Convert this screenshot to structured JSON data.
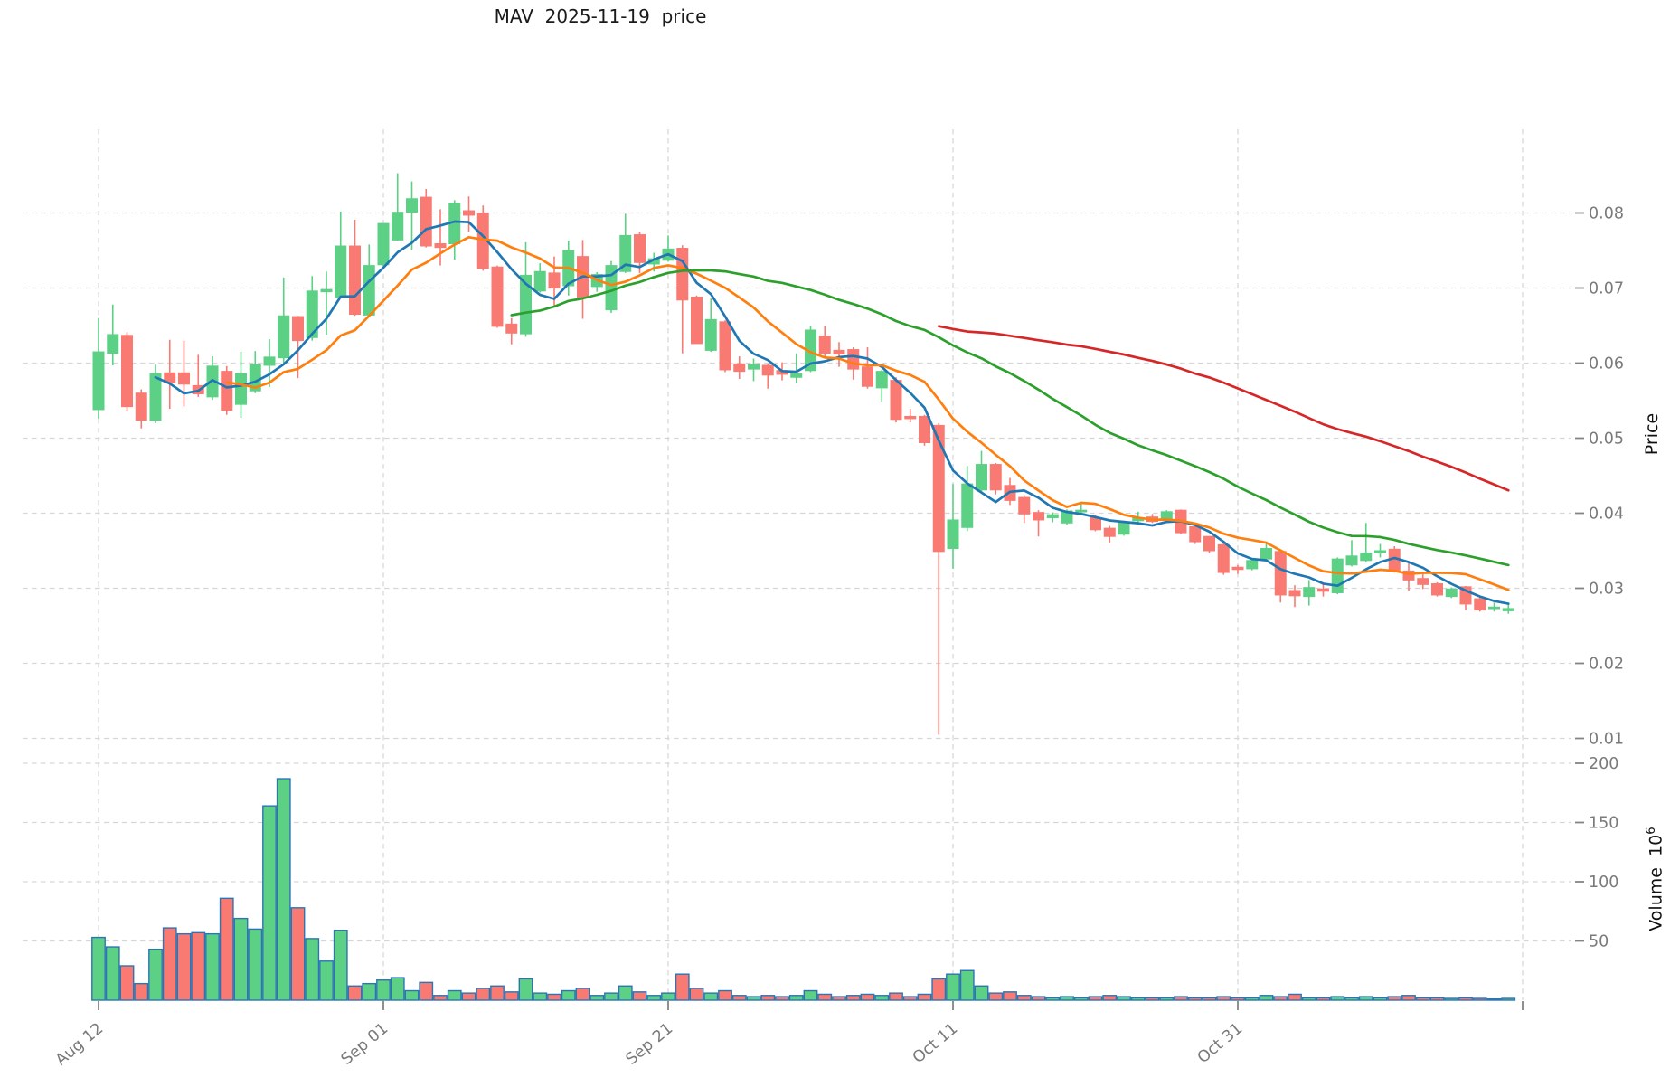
{
  "header": {
    "title": "MAV  2025-11-19  price"
  },
  "colors": {
    "up": "#5cd185",
    "down": "#f87a73",
    "volume_edge": "#2c74b4",
    "ma": [
      "#1f77b4",
      "#ff7f0e",
      "#2ca02c",
      "#d62728"
    ],
    "grid": "#d6d6d6",
    "tick_text": "#7a7a7a",
    "title_text": "#1a1a1a"
  },
  "axes": {
    "price": {
      "label": "Price"
    },
    "volume": {
      "label": "Volume",
      "unit_base": "10",
      "unit_exponent": "6"
    }
  },
  "chart_data": {
    "type": "candlestick",
    "title": "MAV  2025-11-19  price",
    "legend": "none",
    "grid": "dashed both axes",
    "panels": [
      "price with 4 moving averages",
      "volume"
    ],
    "x_axis": {
      "ticks": [
        {
          "label": "Aug 12",
          "candle_index": 0
        },
        {
          "label": "Sep 01",
          "candle_index": 20
        },
        {
          "label": "Sep 21",
          "candle_index": 40
        },
        {
          "label": "Oct 11",
          "candle_index": 60
        },
        {
          "label": "Oct 31",
          "candle_index": 80
        },
        {
          "label": "",
          "candle_index": 100
        }
      ],
      "label_rotation_deg": -40
    },
    "price_axis": {
      "label": "Price",
      "ticks": [
        0.01,
        0.02,
        0.03,
        0.04,
        0.05,
        0.06,
        0.07,
        0.08
      ],
      "ylim": [
        0.0075,
        0.0912
      ]
    },
    "volume_axis": {
      "label": "Volume 10^6",
      "ticks": [
        50,
        100,
        150,
        200
      ],
      "ylim": [
        0,
        210
      ]
    },
    "moving_averages": {
      "windows": [
        5,
        10,
        30,
        60
      ]
    },
    "candles_ohlc": [
      [
        0.0538,
        0.066,
        0.0526,
        0.0615
      ],
      [
        0.0613,
        0.0678,
        0.0597,
        0.0638
      ],
      [
        0.0637,
        0.0641,
        0.0536,
        0.0542
      ],
      [
        0.056,
        0.0565,
        0.0513,
        0.0524
      ],
      [
        0.0524,
        0.0598,
        0.052,
        0.0586
      ],
      [
        0.0587,
        0.0631,
        0.0539,
        0.0574
      ],
      [
        0.0587,
        0.063,
        0.0542,
        0.0572
      ],
      [
        0.057,
        0.0611,
        0.0555,
        0.0559
      ],
      [
        0.0555,
        0.0609,
        0.0551,
        0.0596
      ],
      [
        0.0589,
        0.0596,
        0.0531,
        0.0537
      ],
      [
        0.0545,
        0.0615,
        0.0527,
        0.0586
      ],
      [
        0.0563,
        0.0616,
        0.056,
        0.0598
      ],
      [
        0.0597,
        0.0632,
        0.0568,
        0.0608
      ],
      [
        0.0607,
        0.0714,
        0.06,
        0.0663
      ],
      [
        0.0662,
        0.0663,
        0.058,
        0.063
      ],
      [
        0.0634,
        0.0716,
        0.063,
        0.0696
      ],
      [
        0.0695,
        0.0722,
        0.0638,
        0.0698
      ],
      [
        0.0688,
        0.0802,
        0.0688,
        0.0756
      ],
      [
        0.0756,
        0.0791,
        0.0663,
        0.0665
      ],
      [
        0.0664,
        0.0758,
        0.0664,
        0.073
      ],
      [
        0.0731,
        0.0786,
        0.0729,
        0.0786
      ],
      [
        0.0764,
        0.0853,
        0.0763,
        0.0801
      ],
      [
        0.0801,
        0.0842,
        0.0751,
        0.0819
      ],
      [
        0.0821,
        0.0832,
        0.0754,
        0.0756
      ],
      [
        0.0759,
        0.0805,
        0.073,
        0.0754
      ],
      [
        0.0759,
        0.0817,
        0.0738,
        0.0813
      ],
      [
        0.0803,
        0.0822,
        0.0775,
        0.0797
      ],
      [
        0.08,
        0.081,
        0.0723,
        0.0726
      ],
      [
        0.0728,
        0.073,
        0.0647,
        0.0649
      ],
      [
        0.0652,
        0.066,
        0.0625,
        0.064
      ],
      [
        0.0639,
        0.0761,
        0.0635,
        0.0717
      ],
      [
        0.0696,
        0.0733,
        0.0694,
        0.0722
      ],
      [
        0.072,
        0.0742,
        0.0675,
        0.07
      ],
      [
        0.0703,
        0.0763,
        0.069,
        0.075
      ],
      [
        0.0742,
        0.0764,
        0.0659,
        0.0688
      ],
      [
        0.0702,
        0.0721,
        0.0695,
        0.0718
      ],
      [
        0.0671,
        0.0736,
        0.0667,
        0.073
      ],
      [
        0.0722,
        0.0799,
        0.072,
        0.077
      ],
      [
        0.0771,
        0.0775,
        0.072,
        0.0734
      ],
      [
        0.0732,
        0.0747,
        0.0722,
        0.0739
      ],
      [
        0.0737,
        0.077,
        0.0735,
        0.0752
      ],
      [
        0.0753,
        0.0757,
        0.0613,
        0.0684
      ],
      [
        0.0688,
        0.069,
        0.0626,
        0.0626
      ],
      [
        0.0617,
        0.0686,
        0.0615,
        0.0658
      ],
      [
        0.0655,
        0.0657,
        0.0588,
        0.0591
      ],
      [
        0.0599,
        0.0609,
        0.0579,
        0.0589
      ],
      [
        0.0592,
        0.0606,
        0.0576,
        0.0598
      ],
      [
        0.0597,
        0.0599,
        0.0566,
        0.0584
      ],
      [
        0.059,
        0.0601,
        0.0577,
        0.0585
      ],
      [
        0.0581,
        0.0613,
        0.0573,
        0.0586
      ],
      [
        0.059,
        0.065,
        0.0588,
        0.0644
      ],
      [
        0.0636,
        0.065,
        0.0608,
        0.0613
      ],
      [
        0.0617,
        0.0628,
        0.0595,
        0.0612
      ],
      [
        0.0618,
        0.0621,
        0.0578,
        0.0592
      ],
      [
        0.0595,
        0.0621,
        0.0566,
        0.0569
      ],
      [
        0.0567,
        0.0591,
        0.0549,
        0.0589
      ],
      [
        0.0577,
        0.0581,
        0.0521,
        0.0525
      ],
      [
        0.0529,
        0.0539,
        0.0521,
        0.0526
      ],
      [
        0.0529,
        0.0531,
        0.049,
        0.0494
      ],
      [
        0.0517,
        0.052,
        0.0105,
        0.0349
      ],
      [
        0.0353,
        0.0439,
        0.0326,
        0.0391
      ],
      [
        0.0381,
        0.0463,
        0.0376,
        0.0439
      ],
      [
        0.0431,
        0.0483,
        0.0429,
        0.0465
      ],
      [
        0.0465,
        0.0467,
        0.0425,
        0.0431
      ],
      [
        0.0437,
        0.0447,
        0.0411,
        0.0417
      ],
      [
        0.0421,
        0.0424,
        0.0387,
        0.0399
      ],
      [
        0.0401,
        0.0404,
        0.0369,
        0.0391
      ],
      [
        0.0394,
        0.0401,
        0.0388,
        0.0398
      ],
      [
        0.0387,
        0.0405,
        0.0385,
        0.0403
      ],
      [
        0.0403,
        0.0415,
        0.0399,
        0.0404
      ],
      [
        0.0394,
        0.0398,
        0.0376,
        0.0378
      ],
      [
        0.038,
        0.0383,
        0.0361,
        0.0369
      ],
      [
        0.0372,
        0.039,
        0.037,
        0.0388
      ],
      [
        0.039,
        0.0402,
        0.0387,
        0.0394
      ],
      [
        0.0395,
        0.0399,
        0.0387,
        0.0389
      ],
      [
        0.0391,
        0.0404,
        0.0389,
        0.0402
      ],
      [
        0.0404,
        0.0405,
        0.0372,
        0.0374
      ],
      [
        0.0382,
        0.0383,
        0.0359,
        0.0362
      ],
      [
        0.0369,
        0.0369,
        0.0347,
        0.035
      ],
      [
        0.0358,
        0.036,
        0.0318,
        0.0321
      ],
      [
        0.0328,
        0.0331,
        0.0319,
        0.0325
      ],
      [
        0.0326,
        0.0339,
        0.0324,
        0.0337
      ],
      [
        0.0339,
        0.0362,
        0.0337,
        0.0353
      ],
      [
        0.0349,
        0.0351,
        0.0281,
        0.0291
      ],
      [
        0.0297,
        0.0304,
        0.0275,
        0.029
      ],
      [
        0.0289,
        0.0311,
        0.0277,
        0.0301
      ],
      [
        0.0299,
        0.0305,
        0.0289,
        0.0296
      ],
      [
        0.0294,
        0.0341,
        0.0292,
        0.0339
      ],
      [
        0.0331,
        0.0364,
        0.0329,
        0.0343
      ],
      [
        0.0337,
        0.0387,
        0.0335,
        0.0347
      ],
      [
        0.0347,
        0.0359,
        0.0341,
        0.035
      ],
      [
        0.0352,
        0.0356,
        0.0321,
        0.0323
      ],
      [
        0.0323,
        0.0335,
        0.0297,
        0.0311
      ],
      [
        0.0313,
        0.0322,
        0.0299,
        0.0305
      ],
      [
        0.0306,
        0.0308,
        0.0289,
        0.0291
      ],
      [
        0.0289,
        0.0301,
        0.0287,
        0.0299
      ],
      [
        0.0302,
        0.0303,
        0.0271,
        0.0279
      ],
      [
        0.0286,
        0.0288,
        0.0269,
        0.0271
      ],
      [
        0.0273,
        0.0281,
        0.0269,
        0.0275
      ],
      [
        0.027,
        0.028,
        0.0266,
        0.0273
      ]
    ],
    "volume_millions": [
      53,
      45,
      29,
      14,
      43,
      61,
      56,
      57,
      56,
      86,
      69,
      60,
      164,
      187,
      78,
      52,
      33,
      59,
      12,
      14,
      17,
      19,
      8,
      15,
      4,
      8,
      6,
      10,
      12,
      7,
      18,
      6,
      5,
      8,
      10,
      4,
      6,
      12,
      7,
      4,
      6,
      22,
      10,
      6,
      8,
      4,
      3,
      4,
      3,
      4,
      8,
      5,
      3,
      4,
      5,
      4,
      6,
      3,
      5,
      18,
      22,
      25,
      12,
      6,
      7,
      4,
      3,
      2,
      3,
      2,
      3,
      4,
      3,
      2,
      2,
      2,
      3,
      2,
      2,
      3,
      2,
      2,
      4,
      3,
      5,
      2,
      2,
      3,
      2,
      3,
      2,
      3,
      4,
      2,
      2,
      1.5,
      2,
      1.5,
      1,
      1.5
    ]
  }
}
